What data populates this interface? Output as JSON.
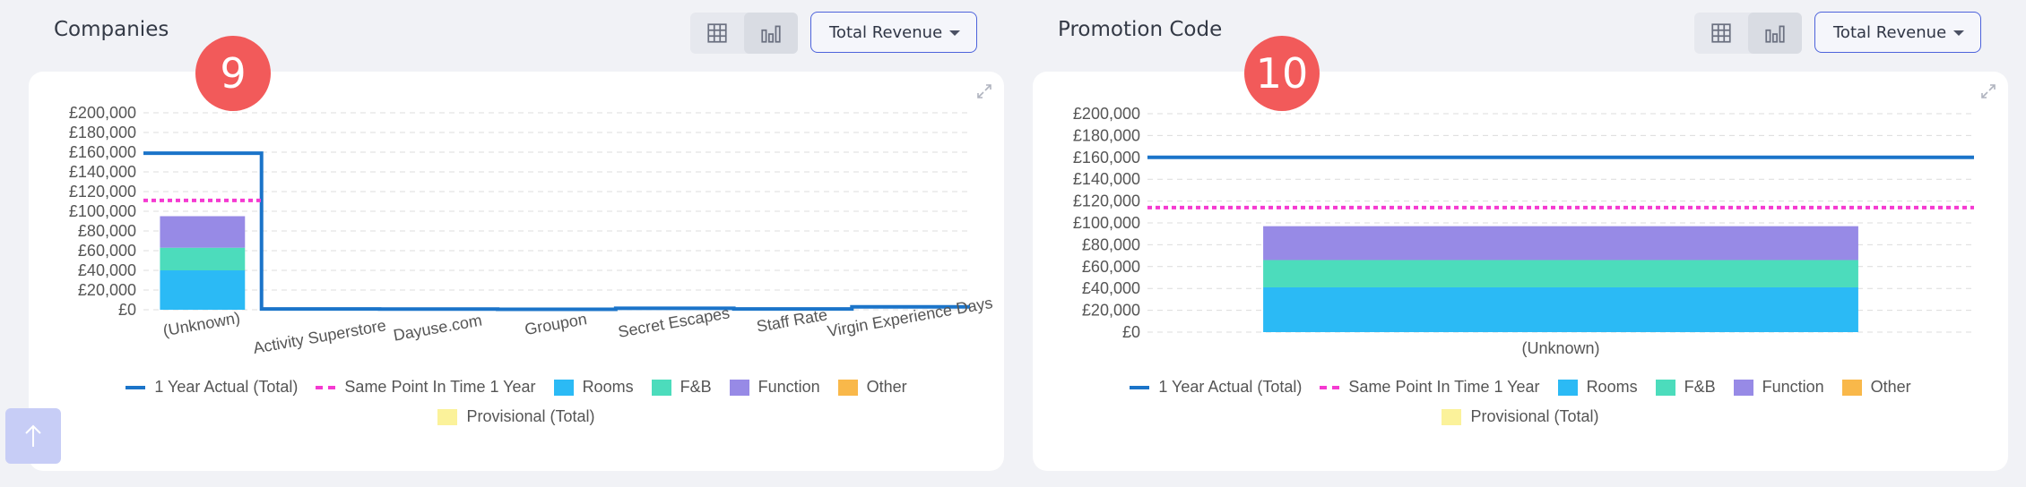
{
  "panels": [
    {
      "title": "Companies",
      "badge": "9",
      "dropdown": "Total Revenue",
      "view_toggle": [
        "table-view",
        "chart-view"
      ],
      "active_view": "chart-view"
    },
    {
      "title": "Promotion Code",
      "badge": "10",
      "dropdown": "Total Revenue",
      "view_toggle": [
        "table-view",
        "chart-view"
      ],
      "active_view": "chart-view"
    }
  ],
  "legend": {
    "row1": [
      "1 Year Actual (Total)",
      "Same Point In Time 1 Year",
      "Rooms",
      "F&B",
      "Function",
      "Other"
    ],
    "row2": [
      "Provisional (Total)"
    ]
  },
  "colors": {
    "actual": "#1b74c9",
    "same_point": "#f53ad1",
    "rooms": "#2bbaf5",
    "fnb": "#4cdcbc",
    "function": "#978ae6",
    "other": "#f9b84a",
    "provisional": "#fbf29a",
    "badge": "#f25a5a",
    "accent": "#4d63db"
  },
  "chart_data": [
    {
      "type": "bar",
      "title": "Companies",
      "categories": [
        "(Unknown)",
        "Activity Superstore",
        "Dayuse.com",
        "Groupon",
        "Secret Escapes",
        "Staff Rate",
        "Virgin Experience Days"
      ],
      "ylim": [
        0,
        200000
      ],
      "yticks": [
        "£0",
        "£20,000",
        "£40,000",
        "£60,000",
        "£80,000",
        "£100,000",
        "£120,000",
        "£140,000",
        "£160,000",
        "£180,000",
        "£200,000"
      ],
      "grid": true,
      "legend_position": "bottom",
      "stacked_series": [
        {
          "name": "Rooms",
          "values": [
            40000,
            0,
            0,
            0,
            0,
            0,
            0
          ]
        },
        {
          "name": "F&B",
          "values": [
            23000,
            0,
            0,
            0,
            0,
            0,
            0
          ]
        },
        {
          "name": "Function",
          "values": [
            32000,
            0,
            0,
            0,
            0,
            0,
            0
          ]
        },
        {
          "name": "Other",
          "values": [
            0,
            0,
            0,
            0,
            0,
            0,
            0
          ]
        }
      ],
      "line_series": [
        {
          "name": "1 Year Actual (Total)",
          "style": "step",
          "values": [
            159000,
            800,
            700,
            500,
            1500,
            800,
            3000
          ]
        },
        {
          "name": "Same Point In Time 1 Year",
          "style": "dotted",
          "values": [
            111000,
            null,
            null,
            null,
            null,
            null,
            null
          ]
        }
      ]
    },
    {
      "type": "bar",
      "title": "Promotion Code",
      "categories": [
        "(Unknown)"
      ],
      "ylim": [
        0,
        200000
      ],
      "yticks": [
        "£0",
        "£20,000",
        "£40,000",
        "£60,000",
        "£80,000",
        "£100,000",
        "£120,000",
        "£140,000",
        "£160,000",
        "£180,000",
        "£200,000"
      ],
      "grid": true,
      "legend_position": "bottom",
      "stacked_series": [
        {
          "name": "Rooms",
          "values": [
            41000
          ]
        },
        {
          "name": "F&B",
          "values": [
            25000
          ]
        },
        {
          "name": "Function",
          "values": [
            31000
          ]
        },
        {
          "name": "Other",
          "values": [
            0
          ]
        }
      ],
      "line_series": [
        {
          "name": "1 Year Actual (Total)",
          "style": "flat",
          "values": [
            160000
          ]
        },
        {
          "name": "Same Point In Time 1 Year",
          "style": "dotted",
          "values": [
            114000
          ]
        }
      ]
    }
  ]
}
